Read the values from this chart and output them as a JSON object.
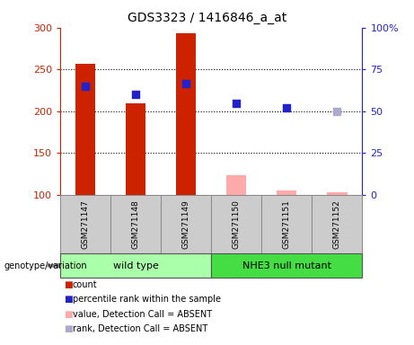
{
  "title": "GDS3323 / 1416846_a_at",
  "samples": [
    "GSM271147",
    "GSM271148",
    "GSM271149",
    "GSM271150",
    "GSM271151",
    "GSM271152"
  ],
  "bar_values": [
    257,
    210,
    293,
    124,
    105,
    103
  ],
  "bar_bottom": 100,
  "bar_color": "#cc2200",
  "absent_bar_color": "#ffaaaa",
  "absent_indices": [
    3,
    4,
    5
  ],
  "blue_dot_values": [
    230,
    220,
    233,
    210,
    204,
    200
  ],
  "blue_dot_present_color": "#2222cc",
  "blue_dot_absent_color": "#aaaacc",
  "blue_dot_absent_indices": [
    5
  ],
  "ylim_left": [
    100,
    300
  ],
  "ylim_right": [
    0,
    100
  ],
  "yticks_left": [
    100,
    150,
    200,
    250,
    300
  ],
  "yticks_right": [
    0,
    25,
    50,
    75,
    100
  ],
  "ytick_labels_left": [
    "100",
    "150",
    "200",
    "250",
    "300"
  ],
  "ytick_labels_right": [
    "0",
    "25",
    "50",
    "75",
    "100%"
  ],
  "left_axis_color": "#cc2200",
  "right_axis_color": "#2222cc",
  "group1_color": "#aaffaa",
  "group2_color": "#44dd44",
  "group1_label": "wild type",
  "group2_label": "NHE3 null mutant",
  "legend_items": [
    {
      "label": "count",
      "color": "#cc2200"
    },
    {
      "label": "percentile rank within the sample",
      "color": "#2222cc"
    },
    {
      "label": "value, Detection Call = ABSENT",
      "color": "#ffaaaa"
    },
    {
      "label": "rank, Detection Call = ABSENT",
      "color": "#aaaacc"
    }
  ],
  "bar_width": 0.4,
  "dot_size": 40,
  "sample_bg_color": "#cccccc",
  "sample_border_color": "#888888",
  "genotype_label": "genotype/variation",
  "grid_color": "black",
  "grid_linestyle": ":",
  "grid_linewidth": 0.8
}
